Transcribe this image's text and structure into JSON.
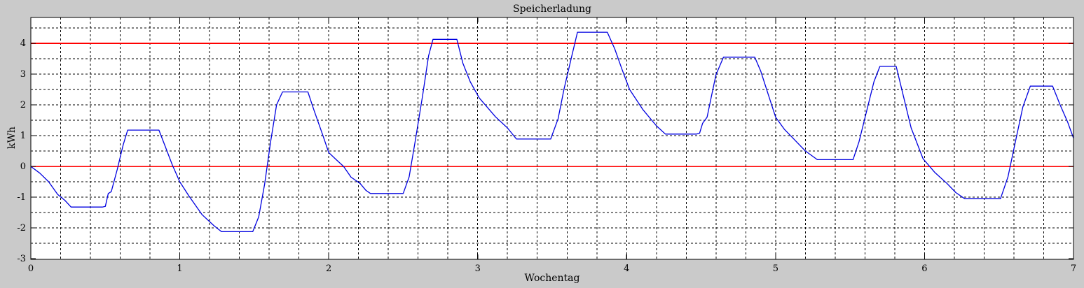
{
  "figure": {
    "title": "Speicherladung",
    "xlabel": "Wochentag",
    "ylabel": "kWh"
  },
  "colors": {
    "figure_bg": "#cacaca",
    "plot_bg": "#ffffff",
    "grid": "#000000",
    "axis": "#000000",
    "series_line": "#0000e0",
    "reference_line": "#ff0000",
    "text": "#000000"
  },
  "chart_data": {
    "type": "line",
    "title": "Speicherladung",
    "xlabel": "Wochentag",
    "ylabel": "kWh",
    "xlim": [
      0,
      7
    ],
    "ylim": [
      -3.02,
      4.84
    ],
    "xticks": [
      0,
      1,
      2,
      3,
      4,
      5,
      6,
      7
    ],
    "yticks": [
      -3,
      -2,
      -1,
      0,
      1,
      2,
      3,
      4
    ],
    "x_grid_step": 0.2,
    "y_grid_step": 0.5,
    "grid": true,
    "legend_position": "none",
    "reference_lines": [
      {
        "y": 0,
        "color": "#ff0000"
      },
      {
        "y": 4,
        "color": "#ff0000"
      }
    ],
    "series": [
      {
        "name": "Speicherladung",
        "color": "#0000e0",
        "points": [
          [
            0.0,
            0.0
          ],
          [
            0.06,
            -0.22
          ],
          [
            0.12,
            -0.5
          ],
          [
            0.18,
            -0.91
          ],
          [
            0.23,
            -1.11
          ],
          [
            0.27,
            -1.32
          ],
          [
            0.48,
            -1.32
          ],
          [
            0.5,
            -1.3
          ],
          [
            0.52,
            -0.88
          ],
          [
            0.54,
            -0.82
          ],
          [
            0.58,
            -0.1
          ],
          [
            0.62,
            0.7
          ],
          [
            0.65,
            1.18
          ],
          [
            0.86,
            1.18
          ],
          [
            0.9,
            0.68
          ],
          [
            0.95,
            0.05
          ],
          [
            1.0,
            -0.5
          ],
          [
            1.06,
            -0.95
          ],
          [
            1.15,
            -1.57
          ],
          [
            1.23,
            -1.93
          ],
          [
            1.28,
            -2.12
          ],
          [
            1.49,
            -2.12
          ],
          [
            1.53,
            -1.64
          ],
          [
            1.57,
            -0.57
          ],
          [
            1.61,
            0.8
          ],
          [
            1.65,
            2.0
          ],
          [
            1.69,
            2.42
          ],
          [
            1.86,
            2.42
          ],
          [
            1.9,
            1.84
          ],
          [
            1.96,
            1.02
          ],
          [
            2.0,
            0.45
          ],
          [
            2.05,
            0.22
          ],
          [
            2.1,
            0.0
          ],
          [
            2.15,
            -0.35
          ],
          [
            2.21,
            -0.55
          ],
          [
            2.25,
            -0.78
          ],
          [
            2.28,
            -0.88
          ],
          [
            2.5,
            -0.88
          ],
          [
            2.54,
            -0.34
          ],
          [
            2.58,
            0.8
          ],
          [
            2.63,
            2.3
          ],
          [
            2.67,
            3.59
          ],
          [
            2.7,
            4.13
          ],
          [
            2.86,
            4.13
          ],
          [
            2.9,
            3.36
          ],
          [
            2.95,
            2.75
          ],
          [
            3.01,
            2.23
          ],
          [
            3.12,
            1.61
          ],
          [
            3.2,
            1.25
          ],
          [
            3.26,
            0.89
          ],
          [
            3.49,
            0.89
          ],
          [
            3.54,
            1.55
          ],
          [
            3.58,
            2.52
          ],
          [
            3.63,
            3.55
          ],
          [
            3.67,
            4.36
          ],
          [
            3.87,
            4.36
          ],
          [
            3.92,
            3.82
          ],
          [
            3.97,
            3.14
          ],
          [
            4.02,
            2.5
          ],
          [
            4.11,
            1.84
          ],
          [
            4.2,
            1.32
          ],
          [
            4.26,
            1.05
          ],
          [
            4.47,
            1.05
          ],
          [
            4.49,
            1.08
          ],
          [
            4.51,
            1.4
          ],
          [
            4.54,
            1.6
          ],
          [
            4.57,
            2.3
          ],
          [
            4.6,
            2.98
          ],
          [
            4.65,
            3.55
          ],
          [
            4.86,
            3.55
          ],
          [
            4.9,
            3.1
          ],
          [
            4.95,
            2.35
          ],
          [
            5.0,
            1.6
          ],
          [
            5.06,
            1.2
          ],
          [
            5.13,
            0.85
          ],
          [
            5.2,
            0.5
          ],
          [
            5.28,
            0.22
          ],
          [
            5.52,
            0.22
          ],
          [
            5.56,
            0.8
          ],
          [
            5.61,
            1.77
          ],
          [
            5.66,
            2.75
          ],
          [
            5.7,
            3.25
          ],
          [
            5.81,
            3.25
          ],
          [
            5.85,
            2.45
          ],
          [
            5.91,
            1.25
          ],
          [
            5.99,
            0.25
          ],
          [
            6.07,
            -0.2
          ],
          [
            6.15,
            -0.55
          ],
          [
            6.21,
            -0.85
          ],
          [
            6.27,
            -1.05
          ],
          [
            6.51,
            -1.05
          ],
          [
            6.56,
            -0.34
          ],
          [
            6.61,
            0.8
          ],
          [
            6.66,
            1.93
          ],
          [
            6.71,
            2.61
          ],
          [
            6.86,
            2.61
          ],
          [
            6.91,
            2.0
          ],
          [
            6.96,
            1.45
          ],
          [
            7.0,
            0.92
          ]
        ]
      }
    ]
  }
}
